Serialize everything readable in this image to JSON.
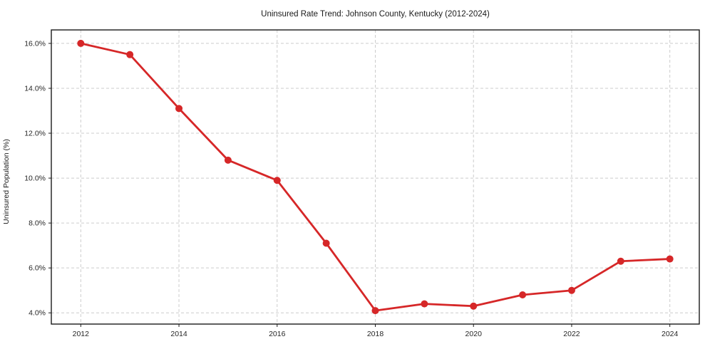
{
  "chart_data": {
    "type": "line",
    "title": "Uninsured Rate Trend: Johnson County, Kentucky (2012-2024)",
    "xlabel": "",
    "ylabel": "Uninsured Population (%)",
    "x": [
      2012,
      2013,
      2014,
      2015,
      2016,
      2017,
      2018,
      2019,
      2020,
      2021,
      2022,
      2023,
      2024
    ],
    "series": [
      {
        "name": "Uninsured rate",
        "color": "#d62728",
        "values": [
          16.0,
          15.5,
          13.1,
          10.8,
          9.9,
          7.1,
          4.1,
          4.4,
          4.3,
          4.8,
          5.0,
          6.3,
          6.4
        ]
      }
    ],
    "xlim": [
      2011.4,
      2024.6
    ],
    "ylim": [
      3.5,
      16.6
    ],
    "xticks": {
      "values": [
        2012,
        2014,
        2016,
        2018,
        2020,
        2022,
        2024
      ],
      "labels": [
        "2012",
        "2014",
        "2016",
        "2018",
        "2020",
        "2022",
        "2024"
      ]
    },
    "yticks": {
      "values": [
        4,
        6,
        8,
        10,
        12,
        14,
        16
      ],
      "labels": [
        "4.0%",
        "6.0%",
        "8.0%",
        "10.0%",
        "12.0%",
        "14.0%",
        "16.0%"
      ]
    },
    "grid": true,
    "grid_style": "dashed",
    "legend": "none",
    "marker": "circle",
    "colors": {
      "line": "#d62728",
      "grid": "#cccccc",
      "spine": "#1a1a1a",
      "tick_text": "#262626",
      "background": "#ffffff"
    }
  }
}
